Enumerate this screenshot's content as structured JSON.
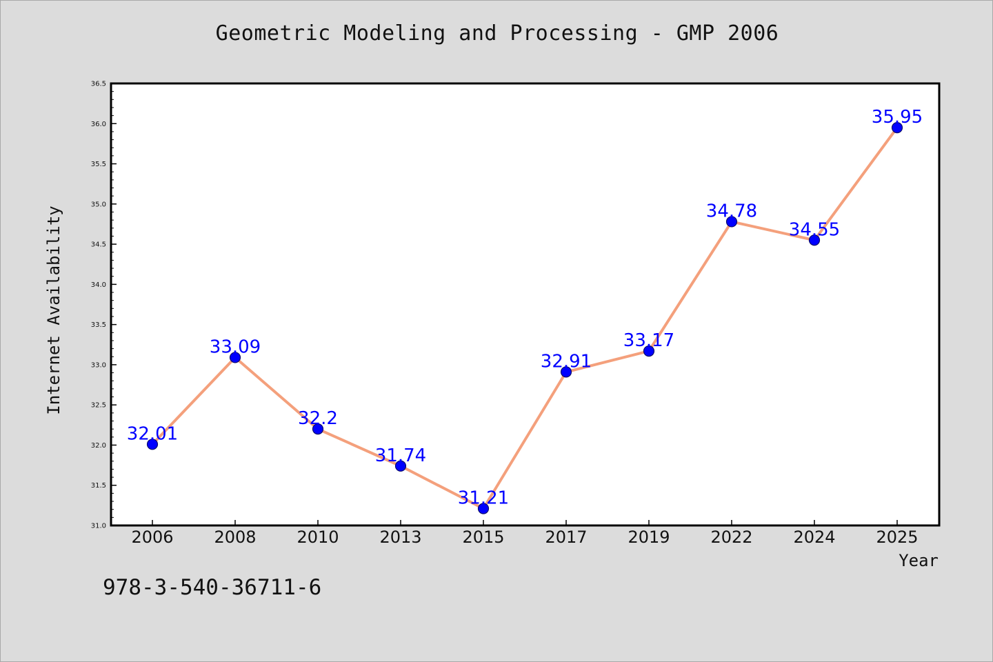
{
  "chart_data": {
    "type": "line",
    "title": "Geometric Modeling and Processing - GMP 2006",
    "xlabel": "Year",
    "ylabel": "Internet Availability",
    "categories": [
      "2006",
      "2008",
      "2010",
      "2013",
      "2015",
      "2017",
      "2019",
      "2022",
      "2024",
      "2025"
    ],
    "series": [
      {
        "values": [
          32.01,
          33.09,
          32.2,
          31.74,
          31.21,
          32.91,
          33.17,
          34.78,
          34.55,
          35.95
        ],
        "labels": [
          "32.01",
          "33.09",
          "32.2",
          "31.74",
          "31.21",
          "32.91",
          "33.17",
          "34.78",
          "34.55",
          "35.95"
        ]
      }
    ],
    "ylim": [
      31.0,
      36.5
    ],
    "yticks": [
      "31.0",
      "31.5",
      "32.0",
      "32.5",
      "33.0",
      "33.5",
      "34.0",
      "34.5",
      "35.0",
      "35.5",
      "36.0",
      "36.5"
    ],
    "grid": false,
    "legend": "none",
    "colors": {
      "line": "#f4a07c",
      "marker": "#0000ff",
      "marker_edge": "#0b0b6b",
      "data_label": "#0000ff",
      "plot_background": "#ffffff",
      "figure_background": "#dcdcdc"
    }
  },
  "footnote": "978-3-540-36711-6"
}
